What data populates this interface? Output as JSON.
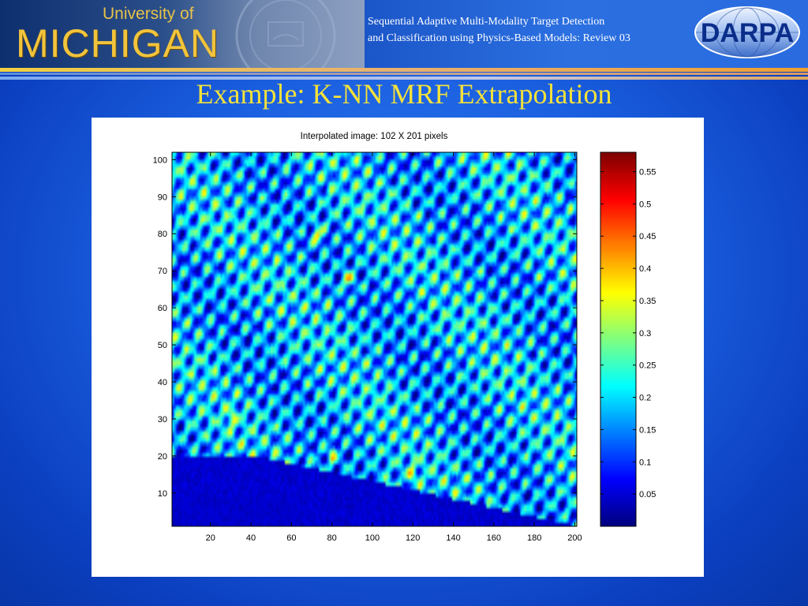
{
  "header": {
    "logo_university": "University of",
    "logo_name": "MICHIGAN",
    "project_title_line1": "Sequential Adaptive Multi-Modality Target Detection",
    "project_title_line2": "and Classification using Physics-Based Models: Review 03",
    "sponsor_logo_text": "DARPA"
  },
  "slide": {
    "title": "Example: K-NN MRF Extrapolation"
  },
  "colors": {
    "slide_title": "#f5e23a",
    "logo_gold": "#f2c43c",
    "background_blue": "#1a5fe0"
  },
  "chart_data": {
    "type": "heatmap",
    "title": "Interpolated image: 102 X 201 pixels",
    "xlabel": "",
    "ylabel": "",
    "image_size": {
      "rows": 102,
      "cols": 201
    },
    "xlim": [
      1,
      201
    ],
    "ylim": [
      1,
      102
    ],
    "x_ticks": [
      20,
      40,
      60,
      80,
      100,
      120,
      140,
      160,
      180,
      200
    ],
    "y_ticks": [
      10,
      20,
      30,
      40,
      50,
      60,
      70,
      80,
      90,
      100
    ],
    "colormap": "jet",
    "colorbar": {
      "range": [
        0.0,
        0.58
      ],
      "ticks": [
        0.05,
        0.1,
        0.15,
        0.2,
        0.25,
        0.3,
        0.35,
        0.4,
        0.45,
        0.5,
        0.55
      ],
      "tick_labels": [
        "0.05",
        "0.1",
        "0.15",
        "0.2",
        "0.25",
        "0.3",
        "0.35",
        "0.4",
        "0.45",
        "0.5",
        "0.55"
      ]
    },
    "grid": false
  }
}
